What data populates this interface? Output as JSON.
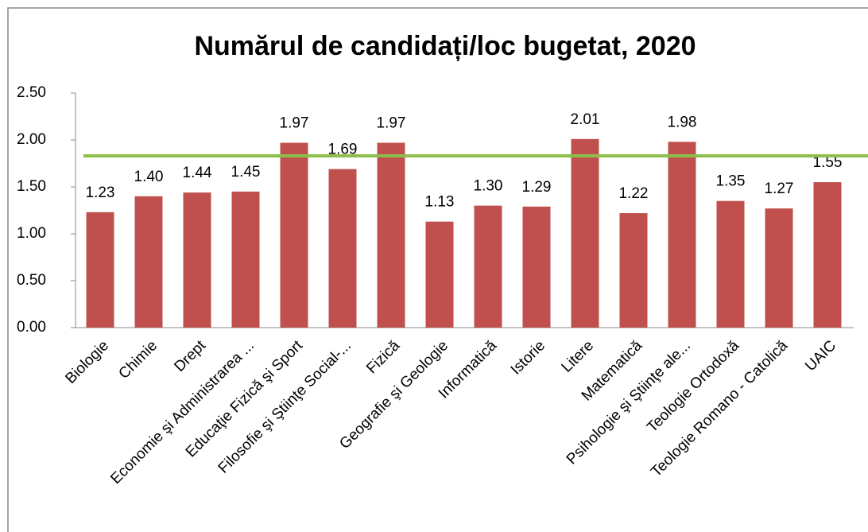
{
  "chart_data": {
    "type": "bar",
    "title": "Numărul de candidați/loc  bugetat, 2020",
    "categories": [
      "Biologie",
      "Chimie",
      "Drept",
      "Economie şi Administrarea ...",
      "Educaţie Fizică şi Sport",
      "Filosofie şi Ştiinţe Social-...",
      "Fizică",
      "Geografie şi Geologie",
      "Informatică",
      "Istorie",
      "Litere",
      "Matematică",
      "Psihologie şi Ştiinţe ale...",
      "Teologie Ortodoxă",
      "Teologie Romano - Catolică",
      "UAIC"
    ],
    "values": [
      1.23,
      1.4,
      1.44,
      1.45,
      1.97,
      1.69,
      1.97,
      1.13,
      1.3,
      1.29,
      2.01,
      1.22,
      1.98,
      1.35,
      1.27,
      1.55
    ],
    "value_labels": [
      "1.23",
      "1.40",
      "1.44",
      "1.45",
      "1.97",
      "1.69",
      "1.97",
      "1.13",
      "1.30",
      "1.29",
      "2.01",
      "1.22",
      "1.98",
      "1.35",
      "1.27",
      "1.55"
    ],
    "color": "#c0504d",
    "reference_line": 1.83,
    "reference_color": "#8cbf4a",
    "ylim": [
      0,
      2.5
    ],
    "yticks": [
      {
        "value": 0,
        "label": "0.00"
      },
      {
        "value": 0.5,
        "label": "0.50"
      },
      {
        "value": 1,
        "label": "1.00"
      },
      {
        "value": 1.5,
        "label": "1.50"
      },
      {
        "value": 2,
        "label": "2.00"
      },
      {
        "value": 2.5,
        "label": "2.50"
      }
    ],
    "grid": false
  }
}
